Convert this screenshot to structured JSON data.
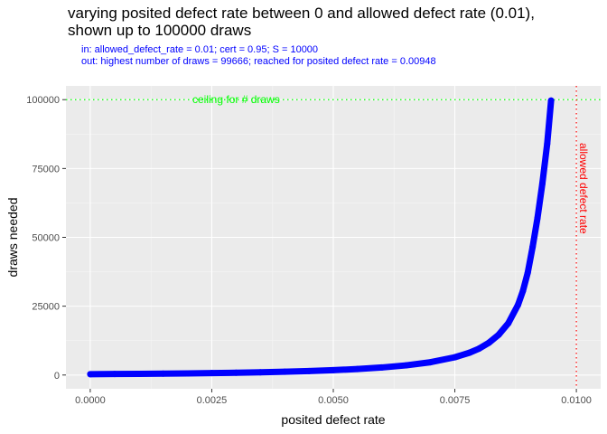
{
  "chart_data": {
    "type": "scatter",
    "title_line1": "varying posited defect rate between 0 and allowed defect rate (0.01),",
    "title_line2": "shown up to 100000 draws",
    "subtitle_line1": "in: allowed_defect_rate = 0.01; cert = 0.95; S = 10000",
    "subtitle_line2": "out: highest number of draws = 99666; reached for posited defect rate = 0.00948",
    "xlabel": "posited defect rate",
    "ylabel": "draws needed",
    "xlim": [
      -0.0005,
      0.0105
    ],
    "ylim": [
      -5000,
      105000
    ],
    "x_ticks": [
      0,
      0.0025,
      0.005,
      0.0075,
      0.01
    ],
    "x_tick_labels": [
      "0.0000",
      "0.0025",
      "0.0050",
      "0.0075",
      "0.0100"
    ],
    "y_ticks": [
      0,
      25000,
      50000,
      75000,
      100000
    ],
    "y_tick_labels": [
      "0",
      "25000",
      "50000",
      "75000",
      "100000"
    ],
    "series": [
      {
        "color": "#0000ff",
        "x": [
          0,
          0.0005,
          0.001,
          0.0015,
          0.002,
          0.0025,
          0.003,
          0.0035,
          0.004,
          0.0045,
          0.005,
          0.0055,
          0.006,
          0.0065,
          0.007,
          0.0075,
          0.0078,
          0.008,
          0.0082,
          0.0084,
          0.0086,
          0.0088,
          0.0089,
          0.009,
          0.0091,
          0.0092,
          0.0093,
          0.0094,
          0.00948
        ],
        "y": [
          300,
          360,
          430,
          510,
          600,
          700,
          830,
          990,
          1190,
          1440,
          1760,
          2180,
          2740,
          3520,
          4650,
          6450,
          8100,
          9600,
          11700,
          14600,
          18800,
          25500,
          30500,
          37200,
          46500,
          57000,
          69500,
          84000,
          99666
        ]
      }
    ],
    "hlines": [
      {
        "y": 100000,
        "color": "#00ff00",
        "label": "ceiling for # draws"
      }
    ],
    "vlines": [
      {
        "x": 0.01,
        "color": "#ff0000",
        "label": "allowed defect rate"
      }
    ],
    "grid": true,
    "background": "#ebebeb"
  }
}
